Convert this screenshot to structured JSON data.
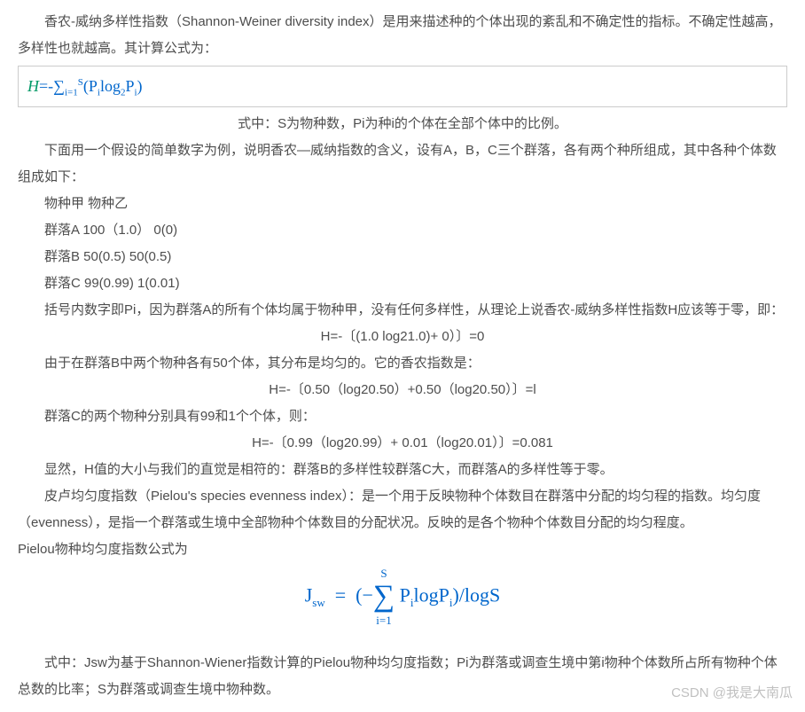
{
  "p1": "香农-威纳多样性指数（Shannon-Weiner diversity index）是用来描述种的个体出现的紊乱和不确定性的指标。不确定性越高，多样性也就越高。其计算公式为：",
  "formula1_html": "H=-∑ᵢ₌₁ˢ (Pᵢlog₂Pᵢ)",
  "p2": "式中：S为物种数，Pi为种i的个体在全部个体中的比例。",
  "p3": "下面用一个假设的简单数字为例，说明香农—威纳指数的含义，设有A，B，C三个群落，各有两个种所组成，其中各种个体数组成如下：",
  "p4": "物种甲 物种乙",
  "p5": "群落A 100（1.0） 0(0)",
  "p6": "群落B 50(0.5) 50(0.5)",
  "p7": "群落C 99(0.99) 1(0.01)",
  "p8": "括号内数字即Pi，因为群落A的所有个体均属于物种甲，没有任何多样性，从理论上说香农-威纳多样性指数H应该等于零，即：",
  "p9": "H=-〔(1.0 log21.0)+ 0）〕=0",
  "p10": "由于在群落B中两个物种各有50个体，其分布是均匀的。它的香农指数是：",
  "p11": "H=-〔0.50（log20.50）+0.50（log20.50）〕=l",
  "p12": "群落C的两个物种分别具有99和1个个体，则：",
  "p13": "H=-〔0.99（log20.99）+ 0.01（log20.01）〕=0.081",
  "p14": "显然，H值的大小与我们的直觉是相符的：群落B的多样性较群落C大，而群落A的多样性等于零。",
  "p15": "皮卢均匀度指数（Pielou's species evenness index）：是一个用于反映物种个体数目在群落中分配的均匀程的指数。均匀度（evenness），是指一个群落或生境中全部物种个体数目的分配状况。反映的是各个物种个体数目分配的均匀程度。",
  "p16": "Pielou物种均匀度指数公式为",
  "formula2_text": "Jₛw = (−∑ PᵢlogPᵢ)/logS",
  "formula2_S": "S",
  "formula2_i1": "i=1",
  "p17": "式中：Jsw为基于Shannon-Wiener指数计算的Pielou物种均匀度指数；Pi为群落或调查生境中第i物种个体数所占所有物种个体总数的比率；S为群落或调查生境中物种数。",
  "watermark": "CSDN @我是大南瓜"
}
